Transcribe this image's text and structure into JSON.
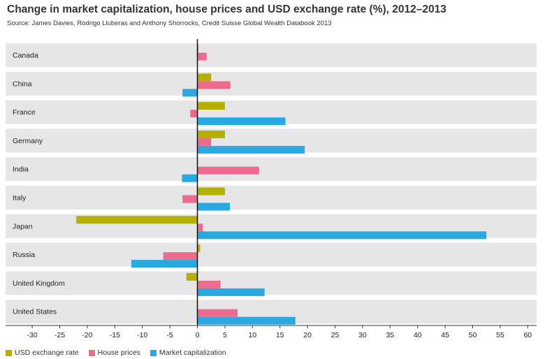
{
  "header": {
    "title": "Change in market capitalization, house prices and USD exchange rate (%), 2012–2013",
    "source": "Source: James Davies, Rodrigo Lluberas and Anthony Shorrocks, Credit Suisse Global Wealth Databook 2013"
  },
  "colors": {
    "usd": "#b5b000",
    "house": "#ef6b8d",
    "market": "#2aa8e0",
    "band": "#e6e6e8"
  },
  "chart_data": {
    "type": "bar",
    "orientation": "horizontal",
    "title": "Change in market capitalization, house prices and USD exchange rate (%), 2012–2013",
    "categories": [
      "Canada",
      "China",
      "France",
      "Germany",
      "India",
      "Italy",
      "Japan",
      "Russia",
      "United Kingdom",
      "United States"
    ],
    "series": [
      {
        "name": "USD exchange rate",
        "values": [
          0.2,
          2.5,
          5.0,
          5.0,
          0.0,
          5.0,
          -22.0,
          0.5,
          -2.0,
          0.0
        ]
      },
      {
        "name": "House prices",
        "values": [
          1.7,
          6.0,
          -1.3,
          2.5,
          11.2,
          -2.7,
          1.0,
          -6.2,
          4.2,
          7.3
        ]
      },
      {
        "name": "Market capitalization",
        "values": [
          0.0,
          -2.7,
          16.0,
          19.5,
          -2.8,
          5.9,
          52.5,
          -12.0,
          12.2,
          17.8
        ]
      }
    ],
    "xlim": [
      -35,
      61
    ],
    "xticks": [
      -30,
      -25,
      -20,
      -15,
      -10,
      -5,
      0,
      5,
      10,
      15,
      20,
      25,
      30,
      35,
      40,
      45,
      50,
      55,
      60
    ],
    "grid": false,
    "legend_position": "bottom-left"
  }
}
